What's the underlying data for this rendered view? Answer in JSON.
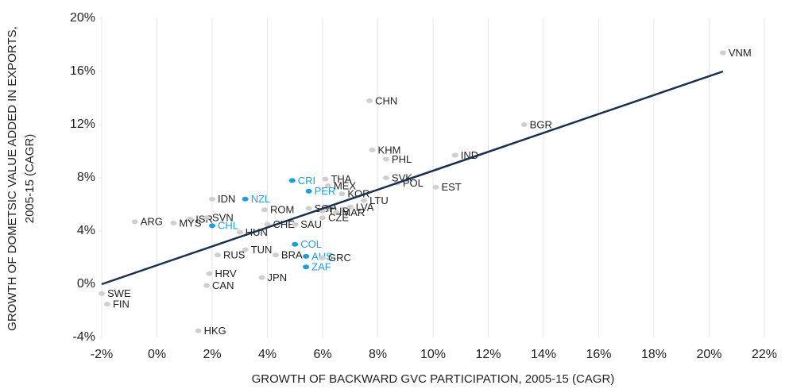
{
  "chart_data": {
    "type": "scatter",
    "xlabel": "GROWTH OF BACKWARD GVC PARTICIPATION, 2005-15 (CAGR)",
    "ylabel": [
      "GROWTH OF DOMETSIC VALUE ADDED IN EXPORTS,",
      "2005-15 (CAGR)"
    ],
    "xlim": [
      -2,
      22
    ],
    "xticks": [
      {
        "value": -2,
        "label": "-2%"
      },
      {
        "value": 0,
        "label": "0%"
      },
      {
        "value": 2,
        "label": "2%"
      },
      {
        "value": 4,
        "label": "4%"
      },
      {
        "value": 6,
        "label": "6%"
      },
      {
        "value": 8,
        "label": "8%"
      },
      {
        "value": 10,
        "label": "10%"
      },
      {
        "value": 12,
        "label": "12%"
      },
      {
        "value": 14,
        "label": "14%"
      },
      {
        "value": 16,
        "label": "16%"
      },
      {
        "value": 18,
        "label": "18%"
      },
      {
        "value": 20,
        "label": "20%"
      },
      {
        "value": 22,
        "label": "22%"
      }
    ],
    "ylim": [
      -4,
      20
    ],
    "yticks": [
      {
        "value": -4,
        "label": "-4%"
      },
      {
        "value": 0,
        "label": "0%"
      },
      {
        "value": 4,
        "label": "4%"
      },
      {
        "value": 8,
        "label": "8%"
      },
      {
        "value": 12,
        "label": "12%"
      },
      {
        "value": 16,
        "label": "16%"
      },
      {
        "value": 20,
        "label": "20%"
      }
    ],
    "xgrid": true,
    "default_color": "#cfcfcf",
    "highlight_color": "#1a9ee0",
    "trend_color": "#1b2f4f",
    "trendline": {
      "x": [
        -2,
        20.5
      ],
      "y": [
        0,
        16
      ]
    },
    "points": [
      {
        "label": "VNM",
        "x": 20.5,
        "y": 17.4
      },
      {
        "label": "BGR",
        "x": 13.3,
        "y": 12.0
      },
      {
        "label": "CHN",
        "x": 7.7,
        "y": 13.8
      },
      {
        "label": "IND",
        "x": 10.8,
        "y": 9.7
      },
      {
        "label": "KHM",
        "x": 7.8,
        "y": 10.1
      },
      {
        "label": "PHL",
        "x": 8.3,
        "y": 9.4
      },
      {
        "label": "EST",
        "x": 10.1,
        "y": 7.3
      },
      {
        "label": "POL",
        "x": 8.7,
        "y": 7.6
      },
      {
        "label": "SVK",
        "x": 8.3,
        "y": 8.0
      },
      {
        "label": "THA",
        "x": 6.1,
        "y": 7.9
      },
      {
        "label": "MEX",
        "x": 6.2,
        "y": 7.4
      },
      {
        "label": "CRI",
        "x": 4.9,
        "y": 7.8,
        "highlight": true
      },
      {
        "label": "PER",
        "x": 5.5,
        "y": 7.0,
        "highlight": true
      },
      {
        "label": "IDN",
        "x": 2.0,
        "y": 6.4
      },
      {
        "label": "NZL",
        "x": 3.2,
        "y": 6.4,
        "highlight": true
      },
      {
        "label": "ROM",
        "x": 3.9,
        "y": 5.6
      },
      {
        "label": "SGP",
        "x": 5.5,
        "y": 5.7
      },
      {
        "label": "TUR",
        "x": 6.0,
        "y": 5.5
      },
      {
        "label": "KOR",
        "x": 6.7,
        "y": 6.8
      },
      {
        "label": "LTU",
        "x": 7.5,
        "y": 6.3
      },
      {
        "label": "MAR",
        "x": 6.5,
        "y": 5.4
      },
      {
        "label": "LVA",
        "x": 7.0,
        "y": 5.8
      },
      {
        "label": "CZE",
        "x": 6.0,
        "y": 5.0
      },
      {
        "label": "ISR",
        "x": 1.2,
        "y": 4.9
      },
      {
        "label": "SVN",
        "x": 1.8,
        "y": 5.0
      },
      {
        "label": "ARG",
        "x": -0.8,
        "y": 4.7
      },
      {
        "label": "MYS",
        "x": 0.6,
        "y": 4.6
      },
      {
        "label": "CHL",
        "x": 2.0,
        "y": 4.4,
        "highlight": true
      },
      {
        "label": "HUN",
        "x": 3.0,
        "y": 3.9
      },
      {
        "label": "CHE",
        "x": 4.0,
        "y": 4.5
      },
      {
        "label": "SAU",
        "x": 5.0,
        "y": 4.5
      },
      {
        "label": "AUS",
        "x": 5.4,
        "y": 2.1,
        "highlight": true
      },
      {
        "label": "COL",
        "x": 5.0,
        "y": 3.0,
        "highlight": true
      },
      {
        "label": "ZAF",
        "x": 5.4,
        "y": 1.3,
        "highlight": true
      },
      {
        "label": "RUS",
        "x": 2.2,
        "y": 2.2
      },
      {
        "label": "TUN",
        "x": 3.2,
        "y": 2.6
      },
      {
        "label": "BRA",
        "x": 4.3,
        "y": 2.2
      },
      {
        "label": "GRC",
        "x": 6.0,
        "y": 2.0
      },
      {
        "label": "HRV",
        "x": 1.9,
        "y": 0.8
      },
      {
        "label": "CAN",
        "x": 1.8,
        "y": -0.1
      },
      {
        "label": "JPN",
        "x": 3.8,
        "y": 0.5
      },
      {
        "label": "SWE",
        "x": -2.0,
        "y": -0.7
      },
      {
        "label": "FIN",
        "x": -1.8,
        "y": -1.5
      },
      {
        "label": "HKG",
        "x": 1.5,
        "y": -3.5
      }
    ]
  }
}
